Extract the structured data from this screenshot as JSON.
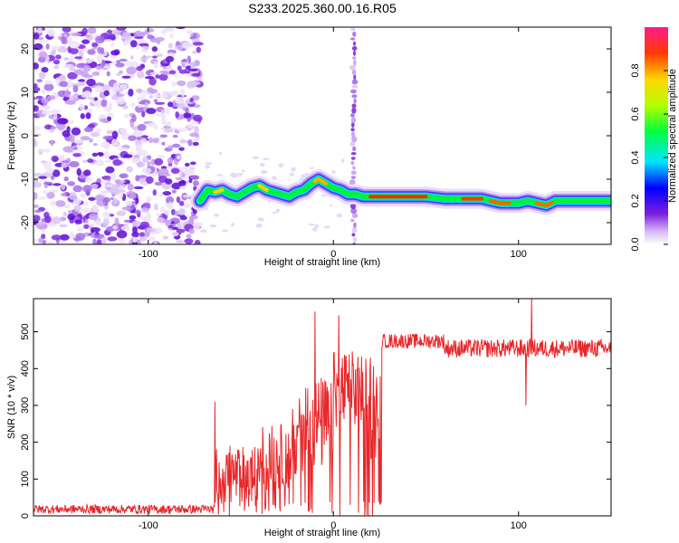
{
  "title": "S233.2025.360.00.16.R05",
  "chart_data": [
    {
      "type": "heatmap",
      "xlabel": "Height of straight line (km)",
      "ylabel": "Frequency (Hz)",
      "xlim": [
        -162,
        150
      ],
      "ylim": [
        -25,
        25
      ],
      "x_ticks": [
        -100,
        0,
        100
      ],
      "y_ticks": [
        -20,
        -10,
        0,
        10,
        20
      ],
      "noise_region_x": [
        -162,
        -72
      ],
      "noise_column_x": 11,
      "ridge": {
        "x": [
          -72,
          -68,
          -64,
          -60,
          -56,
          -52,
          -48,
          -44,
          -40,
          -36,
          -32,
          -28,
          -24,
          -20,
          -16,
          -12,
          -8,
          -4,
          0,
          4,
          8,
          12,
          16,
          20,
          30,
          40,
          50,
          60,
          70,
          80,
          85,
          90,
          95,
          100,
          105,
          110,
          115,
          120,
          130,
          140,
          150
        ],
        "y": [
          -15,
          -12.5,
          -13,
          -12.5,
          -13.5,
          -14,
          -13,
          -12,
          -11.5,
          -12.5,
          -13,
          -13.5,
          -14,
          -13,
          -12.5,
          -11,
          -10,
          -11,
          -12,
          -12.5,
          -13.5,
          -13.5,
          -14,
          -14,
          -14,
          -14,
          -14,
          -14.5,
          -14.5,
          -14.5,
          -15,
          -15.5,
          -15.5,
          -15.5,
          -15,
          -15.5,
          -16,
          -15,
          -15,
          -15,
          -15
        ]
      },
      "colorbar": {
        "label": "Normalized spectral amplitude",
        "range": [
          0,
          1
        ],
        "ticks": [
          "0.0",
          "0.2",
          "0.4",
          "0.6",
          "0.8"
        ]
      }
    },
    {
      "type": "line",
      "xlabel": "Height of straight line (km)",
      "ylabel": "SNR (10 * v/v)",
      "xlim": [
        -162,
        150
      ],
      "ylim": [
        0,
        590
      ],
      "x_ticks": [
        -100,
        0,
        100
      ],
      "y_ticks": [
        0,
        100,
        200,
        300,
        400,
        500
      ],
      "color": "#e8272a",
      "segments": [
        {
          "x_from": -162,
          "x_to": -64,
          "base": 18,
          "noise": 12
        },
        {
          "x_from": -64,
          "x_to": -40,
          "base": 110,
          "noise": 80
        },
        {
          "x_from": -40,
          "x_to": -20,
          "base": 160,
          "noise": 90
        },
        {
          "x_from": -20,
          "x_to": 0,
          "base": 250,
          "noise": 130
        },
        {
          "x_from": 0,
          "x_to": 18,
          "base": 340,
          "noise": 110
        },
        {
          "x_from": 18,
          "x_to": 26,
          "base": 300,
          "noise": 150
        },
        {
          "x_from": 26,
          "x_to": 60,
          "base": 475,
          "noise": 20
        },
        {
          "x_from": 60,
          "x_to": 150,
          "base": 455,
          "noise": 25
        }
      ],
      "spikes": [
        {
          "x": -64,
          "y": 310
        },
        {
          "x": -56,
          "y": 190
        },
        {
          "x": -38,
          "y": 205
        },
        {
          "x": -22,
          "y": 290
        },
        {
          "x": -10,
          "y": 555
        },
        {
          "x": 3,
          "y": 545
        },
        {
          "x": 17,
          "y": 0
        },
        {
          "x": 19,
          "y": 0
        },
        {
          "x": 21,
          "y": 0
        },
        {
          "x": 104,
          "y": 300
        },
        {
          "x": 107,
          "y": 590
        }
      ]
    }
  ]
}
